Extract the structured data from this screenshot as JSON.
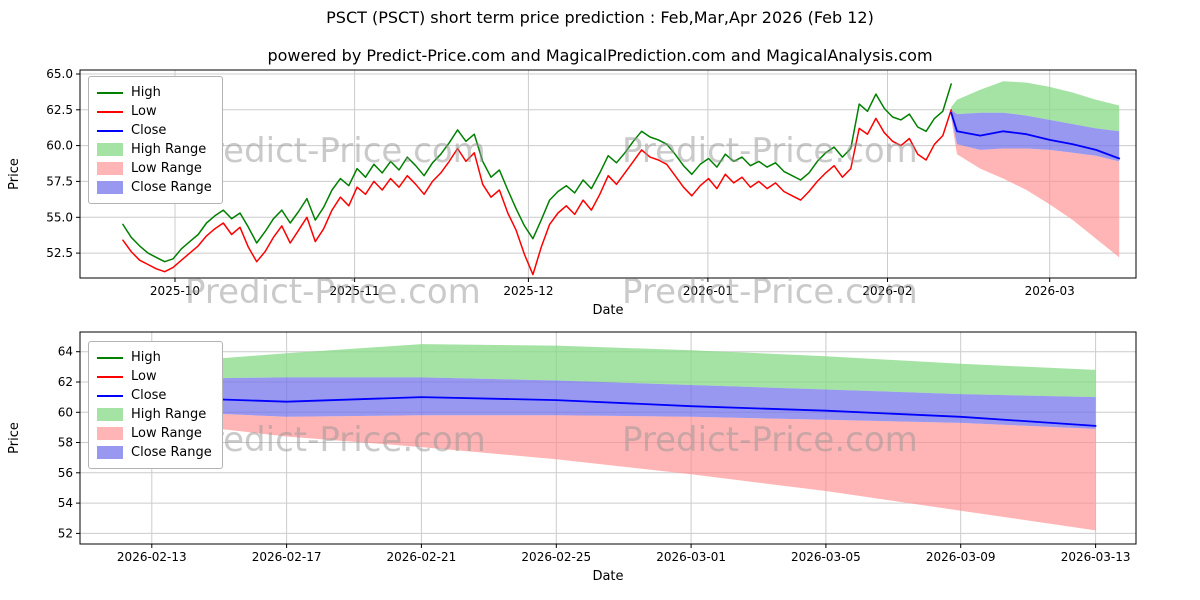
{
  "page": {
    "title": "PSCT (PSCT) short term price prediction : Feb,Mar,Apr 2026 (Feb 12)",
    "subtitle": "powered by Predict-Price.com and MagicalPrediction.com and MagicalAnalysis.com",
    "watermark_text": "Predict-Price.com"
  },
  "colors": {
    "high": "#008000",
    "low": "#ff0000",
    "close": "#0000ff",
    "high_range": "rgba(134,217,134,0.75)",
    "low_range": "rgba(255,142,142,0.65)",
    "close_range": "rgba(112,112,235,0.72)",
    "grid": "#cccccc"
  },
  "legend": {
    "items": [
      {
        "key": "high",
        "label": "High",
        "swatch": "line",
        "color": "high"
      },
      {
        "key": "low",
        "label": "Low",
        "swatch": "line",
        "color": "low"
      },
      {
        "key": "close",
        "label": "Close",
        "swatch": "line",
        "color": "close"
      },
      {
        "key": "high-range",
        "label": "High Range",
        "swatch": "patch",
        "color": "high_range"
      },
      {
        "key": "low-range",
        "label": "Low Range",
        "swatch": "patch",
        "color": "low_range"
      },
      {
        "key": "close-range",
        "label": "Close Range",
        "swatch": "patch",
        "color": "close_range"
      }
    ]
  },
  "chart_data": [
    {
      "type": "line",
      "title": "history plus prediction",
      "xlabel": "Date",
      "ylabel": "Price",
      "x_unit": "days since 2025-09-22",
      "xlim": [
        -7.4,
        174.9
      ],
      "ylim": [
        50.76,
        65.28
      ],
      "yticks": [
        52.5,
        55.0,
        57.5,
        60.0,
        62.5,
        65.0
      ],
      "ytick_decimals": 1,
      "xticks": [
        {
          "v": 9,
          "label": "2025-10"
        },
        {
          "v": 40,
          "label": "2025-11"
        },
        {
          "v": 70,
          "label": "2025-12"
        },
        {
          "v": 101,
          "label": "2026-01"
        },
        {
          "v": 132,
          "label": "2026-02"
        },
        {
          "v": 160,
          "label": "2026-03"
        }
      ],
      "history": {
        "x_start_day": 0,
        "x_end_day": 143,
        "date_start": "2025-09-22",
        "date_end": "2026-02-12",
        "high": [
          54.5,
          53.6,
          53.0,
          52.5,
          52.2,
          51.9,
          52.1,
          52.8,
          53.3,
          53.8,
          54.6,
          55.1,
          55.5,
          54.9,
          55.3,
          54.3,
          53.2,
          54.0,
          54.9,
          55.5,
          54.6,
          55.4,
          56.3,
          54.8,
          55.7,
          56.9,
          57.7,
          57.2,
          58.4,
          57.8,
          58.7,
          58.1,
          58.9,
          58.3,
          59.2,
          58.6,
          57.9,
          58.8,
          59.4,
          60.2,
          61.1,
          60.3,
          60.8,
          58.9,
          57.8,
          58.3,
          56.9,
          55.6,
          54.4,
          53.5,
          54.8,
          56.2,
          56.8,
          57.2,
          56.7,
          57.6,
          57.0,
          58.1,
          59.3,
          58.8,
          59.5,
          60.3,
          61.0,
          60.6,
          60.4,
          60.1,
          59.4,
          58.6,
          58.0,
          58.7,
          59.1,
          58.5,
          59.4,
          58.9,
          59.2,
          58.6,
          58.9,
          58.5,
          58.8,
          58.2,
          57.9,
          57.6,
          58.1,
          58.9,
          59.5,
          59.9,
          59.2,
          59.8,
          62.9,
          62.4,
          63.6,
          62.6,
          62.0,
          61.8,
          62.2,
          61.3,
          61.0,
          61.9,
          62.4,
          64.3
        ],
        "low": [
          53.4,
          52.6,
          52.0,
          51.7,
          51.4,
          51.2,
          51.5,
          52.0,
          52.5,
          53.0,
          53.7,
          54.2,
          54.6,
          53.8,
          54.3,
          52.9,
          51.9,
          52.6,
          53.6,
          54.4,
          53.2,
          54.1,
          55.0,
          53.3,
          54.2,
          55.5,
          56.4,
          55.8,
          57.1,
          56.6,
          57.5,
          56.9,
          57.7,
          57.1,
          57.9,
          57.3,
          56.6,
          57.5,
          58.1,
          58.9,
          59.8,
          58.9,
          59.5,
          57.3,
          56.4,
          56.9,
          55.3,
          54.1,
          52.4,
          51.0,
          52.9,
          54.5,
          55.3,
          55.8,
          55.2,
          56.2,
          55.5,
          56.6,
          57.9,
          57.3,
          58.1,
          58.9,
          59.7,
          59.2,
          59.0,
          58.7,
          57.9,
          57.1,
          56.5,
          57.2,
          57.7,
          57.0,
          58.0,
          57.4,
          57.8,
          57.1,
          57.5,
          57.0,
          57.4,
          56.8,
          56.5,
          56.2,
          56.8,
          57.5,
          58.1,
          58.6,
          57.8,
          58.4,
          61.2,
          60.8,
          61.9,
          60.9,
          60.3,
          60.0,
          60.5,
          59.4,
          59.0,
          60.1,
          60.7,
          62.5
        ]
      },
      "prediction": {
        "days": [
          143,
          144,
          148,
          152,
          156,
          160,
          164,
          168,
          172
        ],
        "dates": [
          "2026-02-12",
          "2026-02-13",
          "2026-02-17",
          "2026-02-21",
          "2026-02-25",
          "2026-03-01",
          "2026-03-05",
          "2026-03-09",
          "2026-03-13"
        ],
        "close": [
          62.3,
          61.0,
          60.7,
          61.0,
          60.8,
          60.4,
          60.1,
          59.7,
          59.1
        ],
        "close_upper": [
          62.5,
          62.2,
          62.3,
          62.3,
          62.1,
          61.8,
          61.5,
          61.2,
          61.0
        ],
        "close_lower": [
          62.1,
          60.1,
          59.7,
          59.8,
          59.8,
          59.7,
          59.5,
          59.3,
          58.9
        ],
        "high_upper": [
          62.7,
          63.2,
          63.9,
          64.5,
          64.4,
          64.1,
          63.7,
          63.2,
          62.8
        ],
        "low_lower": [
          61.9,
          59.4,
          58.4,
          57.7,
          56.9,
          55.9,
          54.8,
          53.5,
          52.2
        ]
      }
    },
    {
      "type": "line",
      "title": "prediction zoom",
      "xlabel": "Date",
      "ylabel": "Price",
      "x_unit": "days since 2025-09-22",
      "xlim": [
        141.87,
        173.2
      ],
      "ylim": [
        51.3,
        65.3
      ],
      "yticks": [
        52,
        54,
        56,
        58,
        60,
        62,
        64
      ],
      "ytick_decimals": 0,
      "xticks": [
        {
          "v": 144,
          "label": "2026-02-13"
        },
        {
          "v": 148,
          "label": "2026-02-17"
        },
        {
          "v": 152,
          "label": "2026-02-21"
        },
        {
          "v": 156,
          "label": "2026-02-25"
        },
        {
          "v": 160,
          "label": "2026-03-01"
        },
        {
          "v": 164,
          "label": "2026-03-05"
        },
        {
          "v": 168,
          "label": "2026-03-09"
        },
        {
          "v": 172,
          "label": "2026-03-13"
        }
      ],
      "prediction": {
        "days": [
          143,
          144,
          148,
          152,
          156,
          160,
          164,
          168,
          172
        ],
        "dates": [
          "2026-02-12",
          "2026-02-13",
          "2026-02-17",
          "2026-02-21",
          "2026-02-25",
          "2026-03-01",
          "2026-03-05",
          "2026-03-09",
          "2026-03-13"
        ],
        "close": [
          62.3,
          61.0,
          60.7,
          61.0,
          60.8,
          60.4,
          60.1,
          59.7,
          59.1
        ],
        "close_upper": [
          62.5,
          62.2,
          62.3,
          62.3,
          62.1,
          61.8,
          61.5,
          61.2,
          61.0
        ],
        "close_lower": [
          62.1,
          60.1,
          59.7,
          59.8,
          59.8,
          59.7,
          59.5,
          59.3,
          58.9
        ],
        "high_upper": [
          62.7,
          63.2,
          63.9,
          64.5,
          64.4,
          64.1,
          63.7,
          63.2,
          62.8
        ],
        "low_lower": [
          61.9,
          59.4,
          58.4,
          57.7,
          56.9,
          55.9,
          54.8,
          53.5,
          52.2
        ]
      }
    }
  ]
}
